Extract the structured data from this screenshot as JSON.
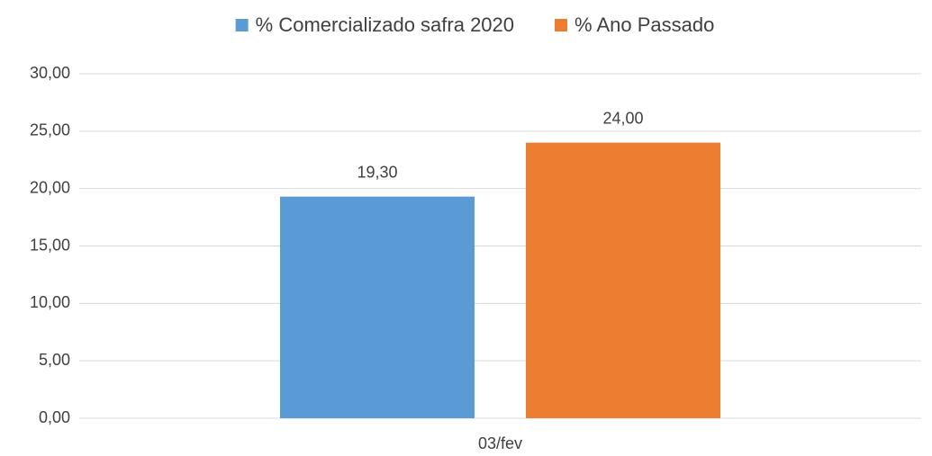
{
  "chart_data": {
    "type": "bar",
    "categories": [
      "03/fev"
    ],
    "series": [
      {
        "name": "% Comercializado safra 2020",
        "color": "#5b9bd5",
        "values": [
          19.3
        ],
        "value_labels": [
          "19,30"
        ]
      },
      {
        "name": "% Ano Passado",
        "color": "#ed7d31",
        "values": [
          24
        ],
        "value_labels": [
          "24,00"
        ]
      }
    ],
    "ylim": [
      0,
      30
    ],
    "yticks": [
      {
        "value": 0,
        "label": "0,00"
      },
      {
        "value": 5,
        "label": "5,00"
      },
      {
        "value": 10,
        "label": "10,00"
      },
      {
        "value": 15,
        "label": "15,00"
      },
      {
        "value": 20,
        "label": "20,00"
      },
      {
        "value": 25,
        "label": "25,00"
      },
      {
        "value": 30,
        "label": "30,00"
      }
    ],
    "grid": true,
    "legend": "top"
  }
}
